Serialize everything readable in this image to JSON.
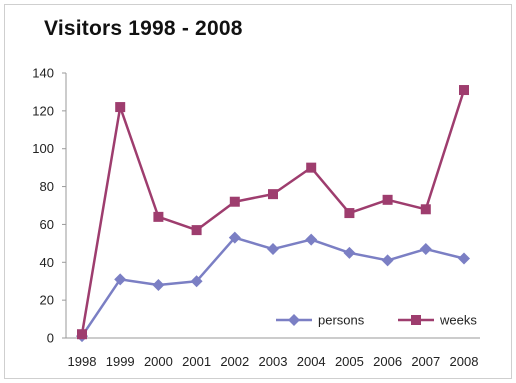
{
  "chart_data": {
    "type": "line",
    "title": "Visitors 1998 - 2008",
    "xlabel": "",
    "ylabel": "",
    "x": [
      "1998",
      "1999",
      "2000",
      "2001",
      "2002",
      "2003",
      "2004",
      "2005",
      "2006",
      "2007",
      "2008"
    ],
    "ylim": [
      0,
      140
    ],
    "yticks": [
      0,
      20,
      40,
      60,
      80,
      100,
      120,
      140
    ],
    "grid": false,
    "legend_position": "bottom-right",
    "series": [
      {
        "name": "persons",
        "marker": "diamond",
        "color": "#7b7fc4",
        "values": [
          1,
          31,
          28,
          30,
          53,
          47,
          52,
          45,
          41,
          47,
          42
        ]
      },
      {
        "name": "weeks",
        "marker": "square",
        "color": "#9e3d6e",
        "values": [
          2,
          122,
          64,
          57,
          72,
          76,
          90,
          66,
          73,
          68,
          131
        ]
      }
    ]
  }
}
